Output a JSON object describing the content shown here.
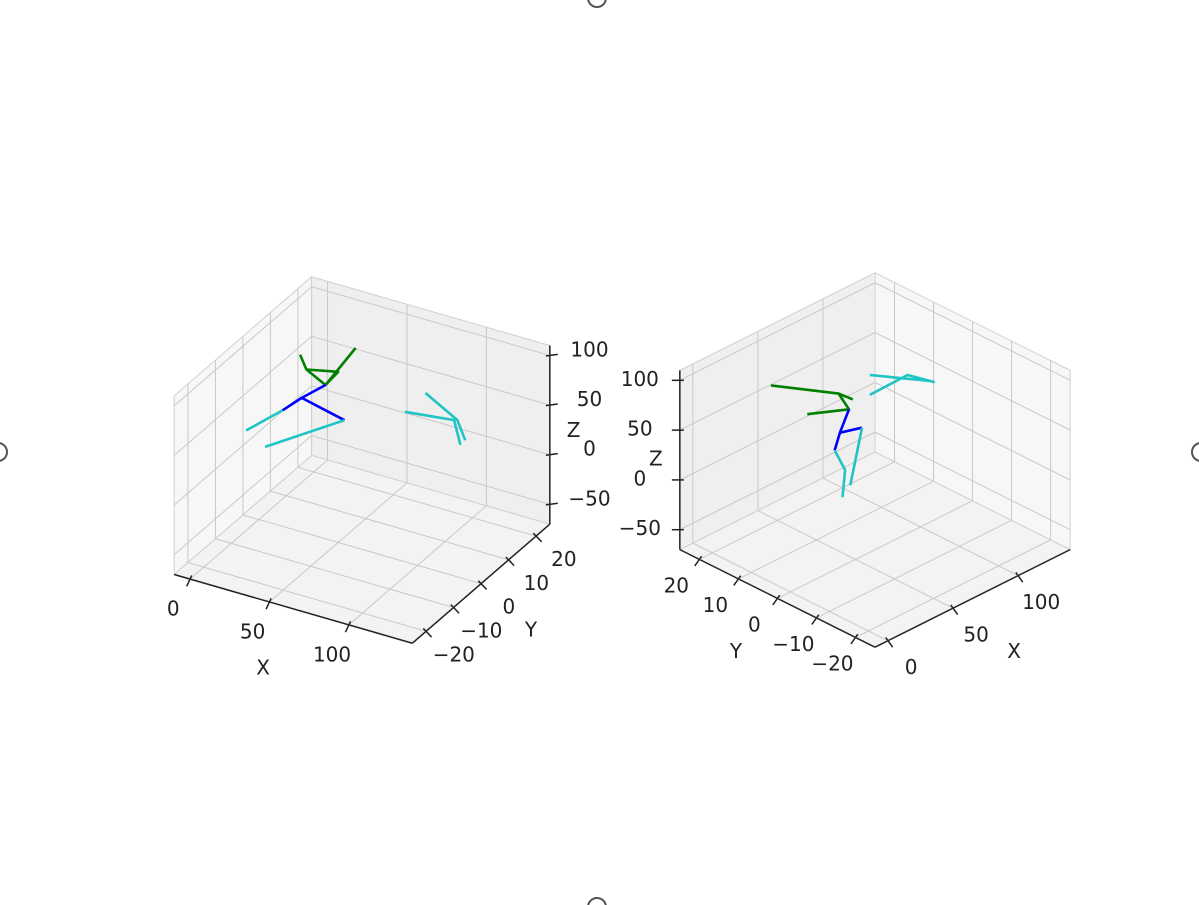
{
  "chart_data": [
    {
      "type": "line3d",
      "xlabel": "X",
      "ylabel": "Y",
      "zlabel": "Z",
      "xlim": [
        -10,
        140
      ],
      "ylim": [
        -25,
        25
      ],
      "zlim": [
        -70,
        110
      ],
      "xticks": [
        0,
        50,
        100
      ],
      "yticks": [
        {
          "value": -20,
          "label": "−20"
        },
        {
          "value": -10,
          "label": "−10"
        },
        0,
        10,
        20
      ],
      "zticks": [
        {
          "value": -50,
          "label": "−50"
        },
        0,
        50,
        100
      ],
      "grid": true,
      "series": [
        {
          "color": "#008000",
          "x": [
            26,
            30,
            42,
            35,
            null,
            30,
            50,
            42
          ],
          "y": [
            0,
            0,
            0,
            15,
            null,
            0,
            0,
            0
          ],
          "z": [
            108,
            95,
            85,
            83,
            null,
            95,
            102,
            85
          ]
        },
        {
          "color": "#0000ff",
          "x": [
            42,
            27,
            15,
            null,
            27,
            54
          ],
          "y": [
            0,
            0,
            0,
            null,
            0,
            0
          ],
          "z": [
            85,
            65,
            47,
            null,
            65,
            55
          ]
        },
        {
          "color": "#1fc4c4",
          "x": [
            15,
            -8,
            null,
            54,
            4,
            null,
            92,
            123,
            127,
            null,
            105,
            125,
            130
          ],
          "y": [
            0,
            0,
            null,
            0,
            0,
            null,
            0,
            0,
            0,
            null,
            0,
            0,
            0
          ],
          "z": [
            47,
            16,
            null,
            55,
            5,
            null,
            81,
            87,
            64,
            null,
            106,
            88,
            70
          ]
        }
      ]
    },
    {
      "type": "line3d",
      "xlabel": "X",
      "ylabel": "Y",
      "zlabel": "Z",
      "xlim": [
        -10,
        140
      ],
      "ylim": [
        -25,
        25
      ],
      "zlim": [
        -70,
        110
      ],
      "xticks": [
        0,
        50,
        100
      ],
      "yticks": [
        {
          "value": -20,
          "label": "−20"
        },
        {
          "value": -10,
          "label": "−10"
        },
        0,
        10,
        20
      ],
      "zticks": [
        {
          "value": -50,
          "label": "−50"
        },
        0,
        50,
        100
      ],
      "grid": true,
      "series": [
        {
          "color": "#008000",
          "x": [
            15,
            37,
            45,
            13,
            null,
            37,
            48
          ],
          "y": [
            10,
            0,
            0,
            0,
            null,
            0,
            0
          ],
          "z": [
            108,
            105,
            84,
            100,
            null,
            105,
            92
          ]
        },
        {
          "color": "#0000ff",
          "x": [
            45,
            38,
            34,
            null,
            38,
            55
          ],
          "y": [
            0,
            0,
            0,
            null,
            0,
            0
          ],
          "z": [
            84,
            65,
            50,
            null,
            65,
            59
          ]
        },
        {
          "color": "#1fc4c4",
          "x": [
            34,
            42,
            40,
            null,
            55,
            46,
            null,
            61,
            90,
            111,
            null,
            61,
            107
          ],
          "y": [
            0,
            0,
            0,
            null,
            0,
            0,
            null,
            0,
            0,
            0,
            null,
            0,
            0
          ],
          "z": [
            50,
            25,
            -1,
            null,
            59,
            7,
            null,
            88,
            89,
            68,
            null,
            108,
            72
          ]
        }
      ]
    }
  ]
}
